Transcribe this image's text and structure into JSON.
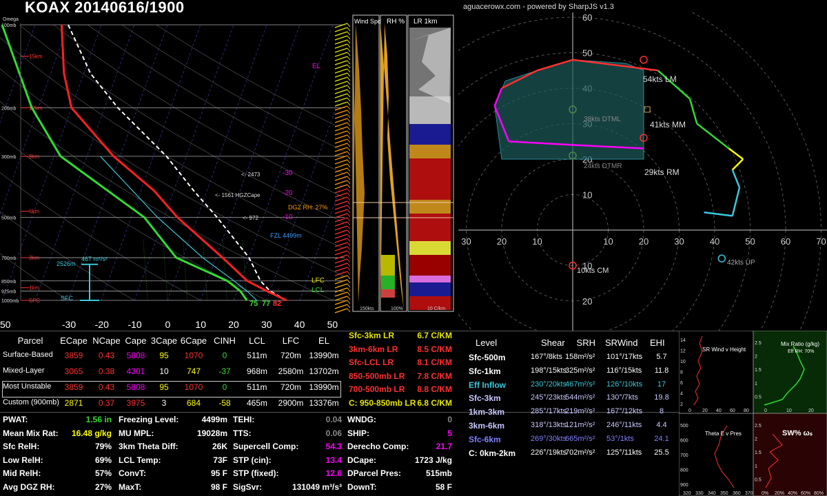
{
  "header": {
    "title": "KOAX 20140616/1900",
    "brand": "aguacerowx.com - powered by SharpJS v1.3"
  },
  "skewt": {
    "pressure_labels": [
      "100mb",
      "200mb",
      "300mb",
      "500mb",
      "700mb",
      "850mb",
      "925mb",
      "1000mb"
    ],
    "omega_label": "Omega",
    "height_labels": [
      "15km",
      "12km",
      "9km",
      "6km",
      "3km",
      "1km",
      "SFC"
    ],
    "x_ticks": [
      "-30",
      "-20",
      "-10",
      "0",
      "10",
      "20",
      "30",
      "40",
      "50"
    ],
    "x_tick_left": "50",
    "annotations": {
      "el": "EL",
      "lfc": "LFC",
      "lcl": "LCL",
      "hgz_n30": "-30",
      "hgz_n20": "-20",
      "hgz_n10": "-10",
      "dgz_label": "DGZ RH: 27%",
      "cape_2473": "<- 2473",
      "cape_1561": "<- 1561 HGZCape",
      "cape_972": "<- 972",
      "fzl": "FZL 4499m",
      "srh_label": "467 m²/s²",
      "eff_top": "2526m",
      "eff_sfc": "SFC",
      "sfc_t1": "75",
      "sfc_t2": "77",
      "sfc_t3": "82"
    }
  },
  "side_panels": {
    "wind_spd": "Wind Spd",
    "rh": "RH %",
    "lr": "LR 1km",
    "wind_max": "150kts",
    "rh_max": "100%",
    "lr_max": "10 C/km"
  },
  "hodograph": {
    "ring_labels_y": [
      "60",
      "50",
      "40",
      "30",
      "20",
      "10",
      "10",
      "20",
      "30"
    ],
    "ring_labels_x": [
      "30",
      "20",
      "10",
      "10",
      "20",
      "30",
      "40",
      "50",
      "60",
      "70"
    ],
    "lm": "54kts LM",
    "mm": "41kts MM",
    "rm": "29kts RM",
    "cm": "10kts CM",
    "up": "42kts UP",
    "dtml": "38kts DTML",
    "dtmr": "24kts DTMR"
  },
  "parcel_table": {
    "headers": [
      "Parcel",
      "ECape",
      "NCape",
      "Cape",
      "3Cape",
      "6Cape",
      "CINH",
      "LCL",
      "LFC",
      "EL"
    ],
    "rows": [
      {
        "name": "Surface-Based",
        "ecape": "3859",
        "ncape": "0.43",
        "cape": "5808",
        "c3": "95",
        "c6": "1070",
        "cinh": "0",
        "lcl": "511m",
        "lfc": "720m",
        "el": "13990m"
      },
      {
        "name": "Mixed-Layer",
        "ecape": "3065",
        "ncape": "0.38",
        "cape": "4301",
        "c3": "10",
        "c6": "747",
        "cinh": "-37",
        "lcl": "968m",
        "lfc": "2580m",
        "el": "13702m"
      },
      {
        "name": "Most Unstable",
        "ecape": "3859",
        "ncape": "0.43",
        "cape": "5808",
        "c3": "95",
        "c6": "1070",
        "cinh": "0",
        "lcl": "511m",
        "lfc": "720m",
        "el": "13990m"
      },
      {
        "name": "Custom (900mb)",
        "ecape": "2871",
        "ncape": "0.37",
        "cape": "3975",
        "c3": "3",
        "c6": "684",
        "cinh": "-58",
        "lcl": "465m",
        "lfc": "2900m",
        "el": "13376m"
      }
    ]
  },
  "lapse_rates": [
    {
      "k": "Sfc-3km LR",
      "v": "6.7 C/KM",
      "c": "#e6e600"
    },
    {
      "k": "3km-6km LR",
      "v": "8.5 C/KM",
      "c": "#ff3030"
    },
    {
      "k": "Sfc-LCL LR",
      "v": "8.1 C/KM",
      "c": "#ff3030"
    },
    {
      "k": "850-500mb LR",
      "v": "7.8 C/KM",
      "c": "#ff3030"
    },
    {
      "k": "700-500mb LR",
      "v": "8.8 C/KM",
      "c": "#ff3030"
    },
    {
      "k": "C: 950-850mb LR",
      "v": "6.8 C/KM",
      "c": "#e6e600"
    }
  ],
  "kinematics": {
    "headers": [
      "Level",
      "Shear",
      "SRH",
      "SRWind",
      "EHI"
    ],
    "rows": [
      {
        "level": "Sfc-500m",
        "shear": "167°/8kts",
        "srh": "158m²/s²",
        "srw": "101°/17kts",
        "ehi": "5.7",
        "c": "#fff"
      },
      {
        "level": "Sfc-1km",
        "shear": "198°/15kts",
        "srh": "325m²/s²",
        "srw": "116°/15kts",
        "ehi": "11.8",
        "c": "#fff"
      },
      {
        "level": "Eff Inflow",
        "shear": "230°/20kts",
        "srh": "467m²/s²",
        "srw": "126°/10kts",
        "ehi": "17",
        "c": "#3cc8dc"
      },
      {
        "level": "Sfc-3km",
        "shear": "245°/23kts",
        "srh": "544m²/s²",
        "srw": "130°/7kts",
        "ehi": "19.8",
        "c": "#c8c8ff"
      },
      {
        "level": "1km-3km",
        "shear": "285°/17kts",
        "srh": "219m²/s²",
        "srw": "167°/12kts",
        "ehi": "8",
        "c": "#c8c8ff"
      },
      {
        "level": "3km-6km",
        "shear": "318°/13kts",
        "srh": "121m²/s²",
        "srw": "246°/11kts",
        "ehi": "4.4",
        "c": "#c8c8ff"
      },
      {
        "level": "Sfc-6km",
        "shear": "269°/30kts",
        "srh": "665m²/s²",
        "srw": "53°/1kts",
        "ehi": "24.1",
        "c": "#8080ff"
      },
      {
        "level": "C: 0km-2km",
        "shear": "226°/19kts",
        "srh": "702m²/s²",
        "srw": "125°/11kts",
        "ehi": "25.5",
        "c": "#fff"
      }
    ]
  },
  "bottom": {
    "col1": [
      {
        "k": "PWAT:",
        "v": "1.56 in",
        "c": "#32dc32"
      },
      {
        "k": "Mean Mix Rat:",
        "v": "16.48 g/kg",
        "c": "#ffff00"
      },
      {
        "k": "Sfc RelH:",
        "v": "79%",
        "c": "#fff"
      },
      {
        "k": "Low RelH:",
        "v": "69%",
        "c": "#fff"
      },
      {
        "k": "Mid RelH:",
        "v": "57%",
        "c": "#fff"
      },
      {
        "k": "Avg DGZ RH:",
        "v": "27%",
        "c": "#fff"
      }
    ],
    "col2": [
      {
        "k": "Freezing Level:",
        "v": "4499m",
        "c": "#fff"
      },
      {
        "k": "MU MPL:",
        "v": "19028m",
        "c": "#fff"
      },
      {
        "k": "3km Theta Diff:",
        "v": "26K",
        "c": "#fff"
      },
      {
        "k": "LCL Temp:",
        "v": "73F",
        "c": "#fff"
      },
      {
        "k": "ConvT:",
        "v": "95 F",
        "c": "#fff"
      },
      {
        "k": "MaxT:",
        "v": "98 F",
        "c": "#fff"
      }
    ],
    "col3": [
      {
        "k": "TEHI:",
        "v": "0.04",
        "c": "#888"
      },
      {
        "k": "TTS:",
        "v": "0.06",
        "c": "#888"
      },
      {
        "k": "Supercell Comp:",
        "v": "54.3",
        "c": "#ff00ff"
      },
      {
        "k": "STP (cin):",
        "v": "13.4",
        "c": "#ff00ff"
      },
      {
        "k": "STP (fixed):",
        "v": "12.6",
        "c": "#ff00ff"
      },
      {
        "k": "SigSvr:",
        "v": "131049 m³/s³",
        "c": "#fff"
      }
    ],
    "col4": [
      {
        "k": "WNDG:",
        "v": "0",
        "c": "#888"
      },
      {
        "k": "SHIP:",
        "v": "5",
        "c": "#ff00ff"
      },
      {
        "k": "Derecho Comp:",
        "v": "21.7",
        "c": "#ff00ff"
      },
      {
        "k": "DCape:",
        "v": "1723 J/kg",
        "c": "#fff"
      },
      {
        "k": "DParcel Pres:",
        "v": "515mb",
        "c": "#fff"
      },
      {
        "k": "DownT:",
        "v": "58 F",
        "c": "#fff"
      }
    ]
  },
  "insets": {
    "sr_wind": "SR Wind  v  Height",
    "mix_ratio": "Mix Ratio (g/kg)",
    "eff_rh": "Eff RH: 70%",
    "theta_e": "Theta E v Pres",
    "sw": "SW% ωₛ",
    "srw_yticks": [
      "14",
      "12",
      "10",
      "8",
      "6",
      "4",
      "2"
    ],
    "srw_xticks": [
      "0",
      "20",
      "40",
      "60",
      "80"
    ],
    "mix_yticks": [
      "2.5",
      "2",
      "1.5",
      "1",
      "0.5"
    ],
    "mix_xticks": [
      "0",
      "10",
      "20"
    ],
    "theta_yticks": [
      "500",
      "600",
      "700",
      "800",
      "900"
    ],
    "theta_xticks": [
      "320",
      "330",
      "340",
      "350",
      "360",
      "370"
    ],
    "sw_yticks": [
      "2.5",
      "2",
      "1.5",
      "1",
      "0.5"
    ],
    "sw_xticks": [
      "0%",
      "20%",
      "40%",
      "60%",
      "80%"
    ]
  },
  "chart_data": [
    {
      "type": "line",
      "title": "KOAX 20140616/1900",
      "note": "Skew-T",
      "xlabel": "",
      "ylabel": "",
      "series": [
        {
          "name": "Temperature",
          "points": [
            [
              1000,
              36
            ],
            [
              925,
              29
            ],
            [
              850,
              22
            ],
            [
              700,
              12
            ],
            [
              500,
              -6
            ],
            [
              400,
              -16
            ],
            [
              300,
              -32
            ],
            [
              200,
              -50
            ],
            [
              150,
              -56
            ],
            [
              100,
              -62
            ]
          ]
        },
        {
          "name": "Dewpoint",
          "points": [
            [
              1000,
              24
            ],
            [
              925,
              21
            ],
            [
              850,
              16
            ],
            [
              700,
              -2
            ],
            [
              500,
              -16
            ],
            [
              400,
              -30
            ],
            [
              300,
              -48
            ],
            [
              200,
              -62
            ],
            [
              100,
              -80
            ]
          ]
        }
      ]
    },
    {
      "type": "scatter",
      "title": "",
      "note": "Hodograph",
      "xlabel": "",
      "ylabel": "",
      "series": [
        {
          "name": "Hodograph",
          "points": [
            [
              37,
              5
            ],
            [
              45,
              4
            ],
            [
              47,
              12
            ],
            [
              45,
              17
            ],
            [
              48,
              20
            ],
            [
              44,
              23
            ],
            [
              35,
              30
            ],
            [
              33,
              37
            ],
            [
              24,
              45
            ],
            [
              0,
              48
            ],
            [
              -10,
              45
            ],
            [
              -20,
              40
            ],
            [
              -22,
              35
            ],
            [
              -18,
              25
            ],
            [
              0,
              24
            ],
            [
              20,
              23
            ]
          ]
        }
      ]
    }
  ]
}
